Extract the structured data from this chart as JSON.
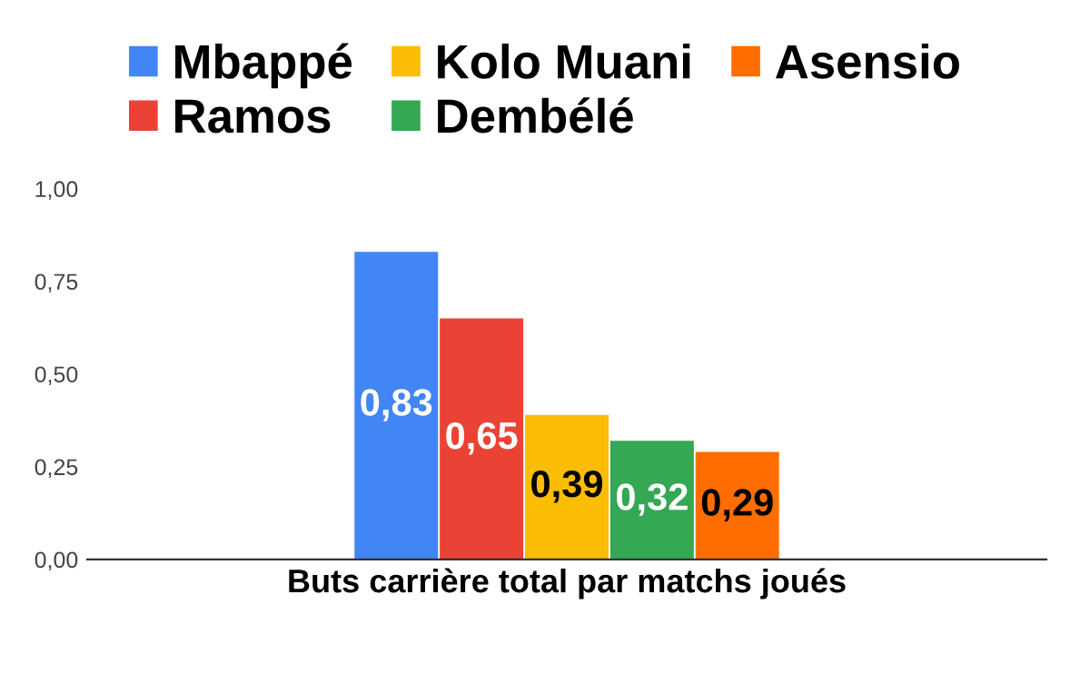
{
  "chart_data": {
    "type": "bar",
    "categories": [
      "Buts carrière total par matchs joués"
    ],
    "series": [
      {
        "name": "Mbappé",
        "color": "#4285f4",
        "values": [
          0.83
        ],
        "value_labels": [
          "0,83"
        ]
      },
      {
        "name": "Ramos",
        "color": "#ea4335",
        "values": [
          0.65
        ],
        "value_labels": [
          "0,65"
        ]
      },
      {
        "name": "Kolo Muani",
        "color": "#fbbc04",
        "values": [
          0.39
        ],
        "value_labels": [
          "0,39"
        ]
      },
      {
        "name": "Dembélé",
        "color": "#34a853",
        "values": [
          0.32
        ],
        "value_labels": [
          "0,32"
        ]
      },
      {
        "name": "Asensio",
        "color": "#ff6d01",
        "values": [
          0.29
        ],
        "value_labels": [
          "0,29"
        ]
      }
    ],
    "ylim": [
      0,
      1
    ],
    "yticks": [
      {
        "value": 0,
        "label": "0,00"
      },
      {
        "value": 0.25,
        "label": "0,25"
      },
      {
        "value": 0.5,
        "label": "0,50"
      },
      {
        "value": 0.75,
        "label": "0,75"
      },
      {
        "value": 1,
        "label": "1,00"
      }
    ],
    "grid": false,
    "legend": "top"
  }
}
